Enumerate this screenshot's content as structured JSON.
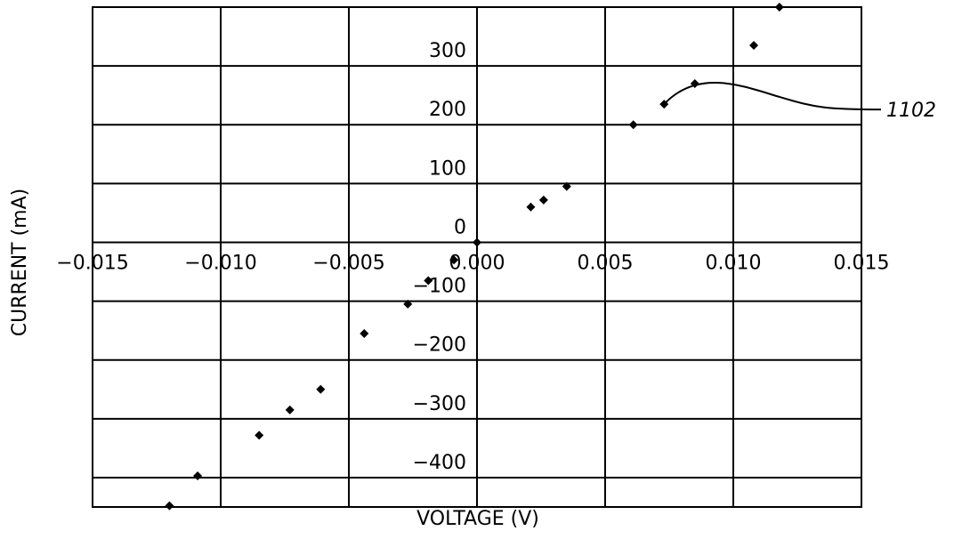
{
  "chart_data": {
    "type": "scatter",
    "xlabel": "VOLTAGE (V)",
    "ylabel": "CURRENT (mA)",
    "xlim": [
      -0.015,
      0.015
    ],
    "ylim": [
      -450,
      400
    ],
    "grid": true,
    "x_ticks": [
      -0.015,
      -0.01,
      -0.005,
      0.0,
      0.005,
      0.01,
      0.015
    ],
    "x_tick_labels": [
      "−0.015",
      "−0.010",
      "−0.005",
      "0.000",
      "0.005",
      "0.010",
      "0.015"
    ],
    "y_tick_labels_shown": [
      {
        "value": 300,
        "label": "300"
      },
      {
        "value": 200,
        "label": "200"
      },
      {
        "value": 100,
        "label": "100"
      },
      {
        "value": 0,
        "label": "0"
      },
      {
        "value": -100,
        "label": "−100"
      },
      {
        "value": -200,
        "label": "−200"
      },
      {
        "value": -300,
        "label": "−300"
      },
      {
        "value": -400,
        "label": "−400"
      }
    ],
    "marker": "diamond",
    "points": [
      {
        "x": -0.012,
        "y": -448
      },
      {
        "x": -0.0109,
        "y": -397
      },
      {
        "x": -0.0085,
        "y": -328
      },
      {
        "x": -0.0073,
        "y": -285
      },
      {
        "x": -0.0061,
        "y": -250
      },
      {
        "x": -0.0044,
        "y": -155
      },
      {
        "x": -0.0027,
        "y": -105
      },
      {
        "x": -0.0019,
        "y": -65
      },
      {
        "x": -0.0009,
        "y": -30
      },
      {
        "x": 0.0,
        "y": 0
      },
      {
        "x": 0.0021,
        "y": 60
      },
      {
        "x": 0.0026,
        "y": 72
      },
      {
        "x": 0.0035,
        "y": 95
      },
      {
        "x": 0.0061,
        "y": 200
      },
      {
        "x": 0.0073,
        "y": 235
      },
      {
        "x": 0.0085,
        "y": 270
      },
      {
        "x": 0.0108,
        "y": 335
      },
      {
        "x": 0.0118,
        "y": 400
      }
    ],
    "annotations": [
      {
        "text": "1102",
        "target_point_index": 14
      }
    ]
  }
}
